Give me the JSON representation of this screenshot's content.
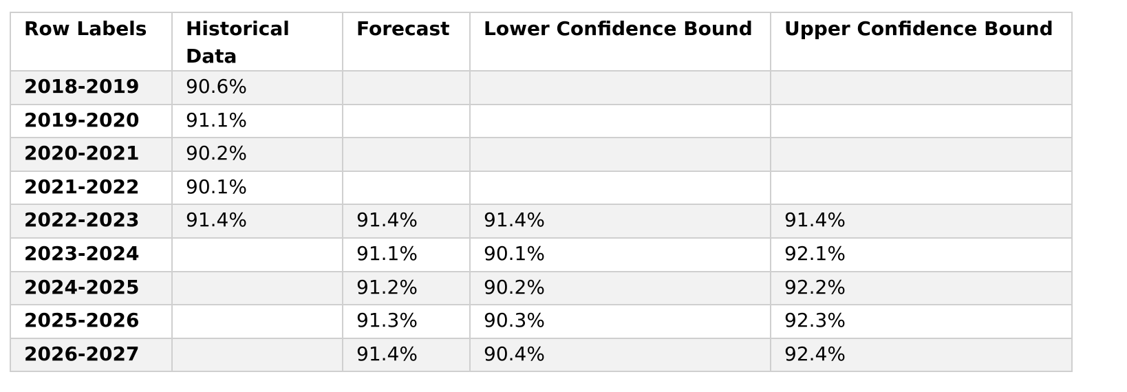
{
  "table": {
    "headers": [
      "Row Labels",
      "Historical Data",
      "Forecast",
      "Lower Confidence Bound",
      "Upper Confidence Bound"
    ],
    "rows": [
      [
        "2018-2019",
        "90.6%",
        "",
        "",
        ""
      ],
      [
        "2019-2020",
        "91.1%",
        "",
        "",
        ""
      ],
      [
        "2020-2021",
        "90.2%",
        "",
        "",
        ""
      ],
      [
        "2021-2022",
        "90.1%",
        "",
        "",
        ""
      ],
      [
        "2022-2023",
        "91.4%",
        "91.4%",
        "91.4%",
        "91.4%"
      ],
      [
        "2023-2024",
        "",
        "91.1%",
        "90.1%",
        "92.1%"
      ],
      [
        "2024-2025",
        "",
        "91.2%",
        "90.2%",
        "92.2%"
      ],
      [
        "2025-2026",
        "",
        "91.3%",
        "90.3%",
        "92.3%"
      ],
      [
        "2026-2027",
        "",
        "91.4%",
        "90.4%",
        "92.4%"
      ]
    ]
  },
  "colors": {
    "border": "#cfcfcf",
    "band_row": "#f2f2f2",
    "plain_row": "#ffffff",
    "text": "#000000"
  }
}
